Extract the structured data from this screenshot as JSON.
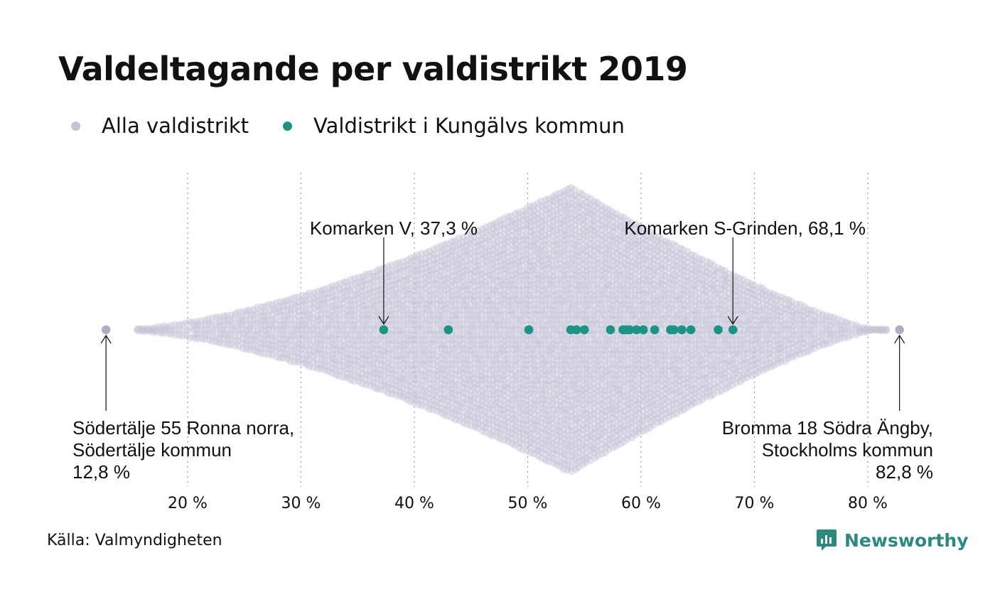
{
  "title": "Valdeltagande per valdistrikt 2019",
  "legend": [
    {
      "label": "Alla valdistrikt",
      "color": "#c4c4d4"
    },
    {
      "label": "Valdistrikt i Kungälvs kommun",
      "color": "#1a9485"
    }
  ],
  "source": "Källa: Valmyndigheten",
  "brand": "Newsworthy",
  "colors": {
    "all": "#c4c4d4",
    "highlight": "#1a9485",
    "brand": "#2a8a7d"
  },
  "chart_data": {
    "type": "scatter",
    "subtype": "beeswarm",
    "x_unit": "%",
    "xlim": [
      12.8,
      82.8
    ],
    "ticks": [
      {
        "value": 20,
        "label": "20 %"
      },
      {
        "value": 30,
        "label": "30 %"
      },
      {
        "value": 40,
        "label": "40 %"
      },
      {
        "value": 50,
        "label": "50 %"
      },
      {
        "value": 60,
        "label": "60 %"
      },
      {
        "value": 70,
        "label": "70 %"
      },
      {
        "value": 80,
        "label": "80 %"
      }
    ],
    "grid": "vertical dotted",
    "mode": 53.8,
    "series": [
      {
        "name": "Alla valdistrikt",
        "values": [
          12.8,
          82.8
        ]
      },
      {
        "name": "Valdistrikt i Kungälvs kommun",
        "values": [
          37.3,
          43.0,
          50.1,
          53.8,
          54.3,
          55.0,
          57.3,
          58.4,
          58.7,
          59.0,
          59.6,
          60.2,
          61.2,
          62.6,
          62.9,
          63.6,
          64.4,
          66.8,
          68.1
        ]
      }
    ],
    "annotations": [
      {
        "lines": [
          "Komarken V, 37,3 %"
        ],
        "value": 37.3
      },
      {
        "lines": [
          "Komarken S-Grinden, 68,1 %"
        ],
        "value": 68.1
      },
      {
        "lines": [
          "Södertälje 55 Ronna norra,",
          "Södertälje kommun",
          "12,8 %"
        ],
        "value": 12.8
      },
      {
        "lines": [
          "Bromma 18 Södra Ängby,",
          "Stockholms kommun",
          "82,8 %"
        ],
        "value": 82.8
      }
    ]
  }
}
